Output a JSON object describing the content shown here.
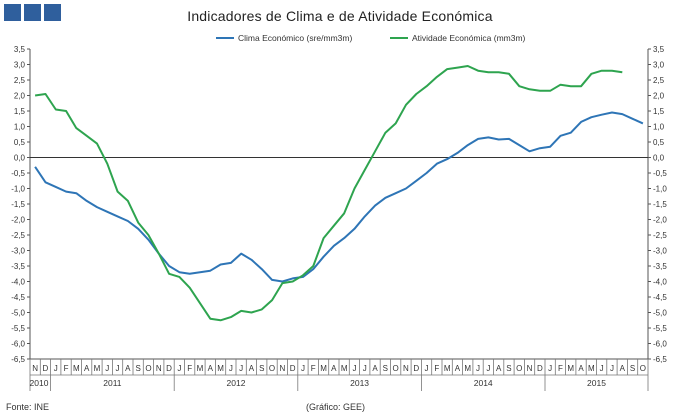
{
  "header": {
    "logo_blocks": 3,
    "brand_color": "#2f5f9d"
  },
  "footer": {
    "source": "Fonte: INE",
    "credit": "(Gráfico: GEE)"
  },
  "chart_data": {
    "type": "line",
    "title": "Indicadores de Clima e de Atividade Económica",
    "ylim": [
      -6.5,
      3.5
    ],
    "y_step": 0.5,
    "legend_position": "top",
    "grid": false,
    "month_labels": [
      "N",
      "D",
      "J",
      "F",
      "M",
      "A",
      "M",
      "J",
      "J",
      "A",
      "S",
      "O",
      "N",
      "D",
      "J",
      "F",
      "M",
      "A",
      "M",
      "J",
      "J",
      "A",
      "S",
      "O",
      "N",
      "D",
      "J",
      "F",
      "M",
      "A",
      "M",
      "J",
      "J",
      "A",
      "S",
      "O",
      "N",
      "D",
      "J",
      "F",
      "M",
      "A",
      "M",
      "J",
      "J",
      "A",
      "S",
      "O",
      "N",
      "D",
      "J",
      "F",
      "M",
      "A",
      "M",
      "J",
      "J",
      "A",
      "S",
      "O"
    ],
    "year_labels": [
      {
        "label": "2010",
        "first": 0,
        "last": 1
      },
      {
        "label": "2011",
        "first": 2,
        "last": 13
      },
      {
        "label": "2012",
        "first": 14,
        "last": 25
      },
      {
        "label": "2013",
        "first": 26,
        "last": 37
      },
      {
        "label": "2014",
        "first": 38,
        "last": 49
      },
      {
        "label": "2015",
        "first": 50,
        "last": 59
      }
    ],
    "series": [
      {
        "name": "Clima Económico (sre/mm3m)",
        "color": "#2e75b6",
        "values": [
          -0.3,
          -0.8,
          -0.95,
          -1.1,
          -1.15,
          -1.4,
          -1.6,
          -1.75,
          -1.9,
          -2.05,
          -2.3,
          -2.65,
          -3.1,
          -3.5,
          -3.7,
          -3.75,
          -3.7,
          -3.65,
          -3.45,
          -3.4,
          -3.1,
          -3.3,
          -3.6,
          -3.95,
          -4.0,
          -3.9,
          -3.85,
          -3.6,
          -3.2,
          -2.85,
          -2.6,
          -2.3,
          -1.9,
          -1.55,
          -1.3,
          -1.15,
          -1.0,
          -0.75,
          -0.5,
          -0.2,
          -0.05,
          0.15,
          0.4,
          0.6,
          0.65,
          0.58,
          0.6,
          0.4,
          0.2,
          0.3,
          0.35,
          0.7,
          0.8,
          1.15,
          1.3,
          1.38,
          1.45,
          1.4,
          1.25,
          1.1
        ]
      },
      {
        "name": "Atividade Económica (mm3m)",
        "color": "#2ea44f",
        "values": [
          2.0,
          2.05,
          1.55,
          1.5,
          0.95,
          0.7,
          0.45,
          -0.2,
          -1.1,
          -1.4,
          -2.1,
          -2.5,
          -3.1,
          -3.75,
          -3.85,
          -4.2,
          -4.7,
          -5.2,
          -5.25,
          -5.15,
          -4.95,
          -5.0,
          -4.9,
          -4.6,
          -4.05,
          -4.0,
          -3.8,
          -3.5,
          -2.6,
          -2.2,
          -1.8,
          -1.0,
          -0.4,
          0.2,
          0.8,
          1.1,
          1.7,
          2.05,
          2.3,
          2.6,
          2.85,
          2.9,
          2.95,
          2.8,
          2.75,
          2.75,
          2.7,
          2.3,
          2.2,
          2.15,
          2.15,
          2.35,
          2.3,
          2.3,
          2.7,
          2.8,
          2.8,
          2.75
        ]
      }
    ]
  }
}
